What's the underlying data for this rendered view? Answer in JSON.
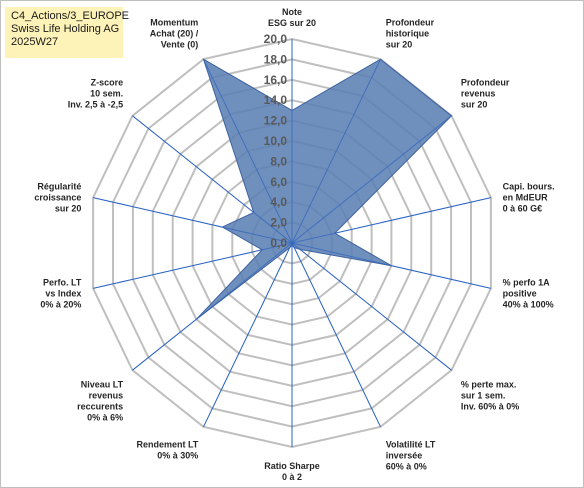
{
  "header": {
    "line1": "C4_Actions/3_EUROPE",
    "line2": "Swiss Life Holding AG",
    "line3": "2025W27"
  },
  "chart_data": {
    "type": "radar",
    "title": "",
    "rmin": 0,
    "rmax": 20,
    "ticks": [
      "0,0",
      "2,0",
      "4,0",
      "6,0",
      "8,0",
      "10,0",
      "12,0",
      "14,0",
      "16,0",
      "18,0",
      "20,0"
    ],
    "axes": [
      {
        "label": [
          "Note",
          "ESG sur 20"
        ],
        "value": 13.0
      },
      {
        "label": [
          "Profondeur",
          "historique",
          "sur 20"
        ],
        "value": 20.0
      },
      {
        "label": [
          "Profondeur",
          "revenus",
          "sur 20"
        ],
        "value": 20.0
      },
      {
        "label": [
          "Capi. bours.",
          "en MdEUR",
          "0 à 60 G€"
        ],
        "value": 4.3
      },
      {
        "label": [
          "% perfo 1A",
          "positive",
          "40% à 100%"
        ],
        "value": 10.0
      },
      {
        "label": [
          "% perte max.",
          "sur 1 sem.",
          "Inv. 60% à 0%"
        ],
        "value": 1.0
      },
      {
        "label": [
          "Volatilité LT",
          "inversée",
          "60% à 0%"
        ],
        "value": 0.5
      },
      {
        "label": [
          "Ratio Sharpe",
          "0 à 2"
        ],
        "value": 0.2
      },
      {
        "label": [
          "Rendement LT",
          "0% à 30%"
        ],
        "value": 0.5
      },
      {
        "label": [
          "Niveau LT",
          "revenus",
          "reccurents",
          "0% à 6%"
        ],
        "value": 12.0
      },
      {
        "label": [
          "Perfo. LT",
          "vs Index",
          "0% à 20%"
        ],
        "value": 3.0
      },
      {
        "label": [
          "Régularité",
          "croissance",
          "sur 20"
        ],
        "value": 7.0
      },
      {
        "label": [
          "Z-score",
          "10 sem.",
          "Inv. 2,5 à -2,5"
        ],
        "value": 4.8
      },
      {
        "label": [
          "Momentum",
          "Achat (20) /",
          "Vente (0)"
        ],
        "value": 20.0
      }
    ],
    "colors": {
      "fill": "#5b7fb4",
      "stroke": "#3f63a0",
      "grid": "#bfbfbf",
      "spoke": "#2f66c4"
    }
  }
}
